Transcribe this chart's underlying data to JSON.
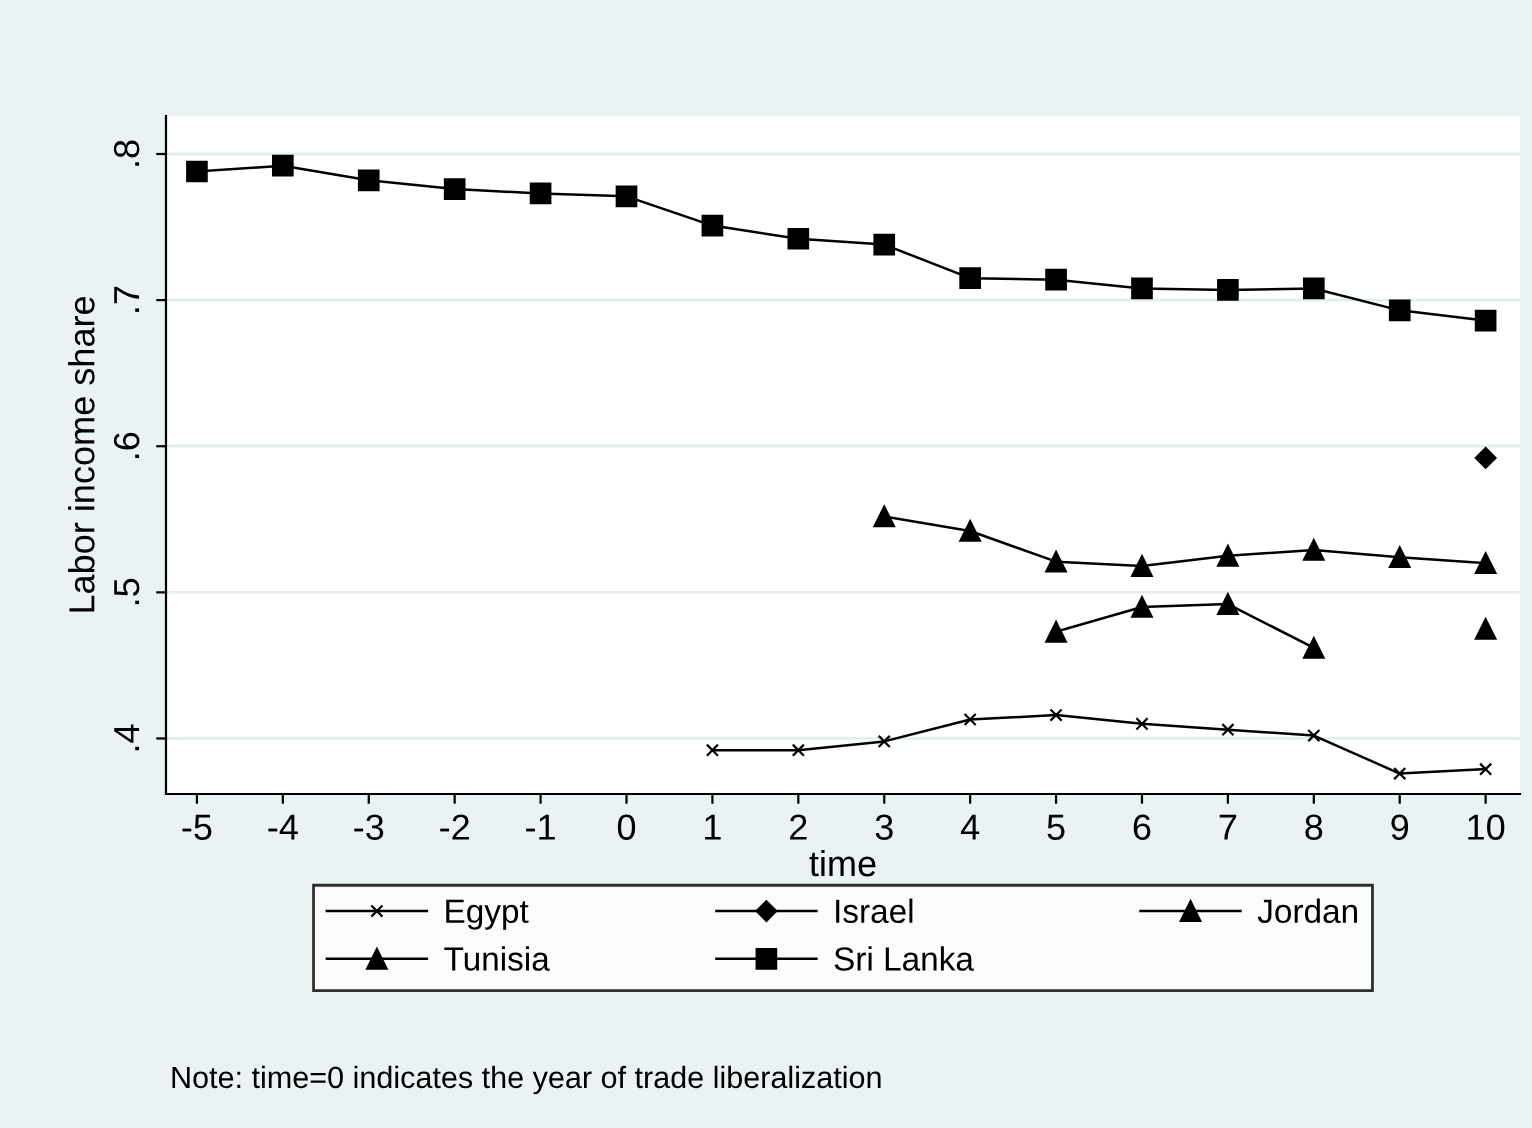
{
  "chart_data": {
    "type": "line",
    "xlabel": "time",
    "ylabel": "Labor income share",
    "xlim": [
      -5.36,
      10.4
    ],
    "ylim": [
      0.362,
      0.826
    ],
    "xticks": [
      -5,
      -4,
      -3,
      -2,
      -1,
      0,
      1,
      2,
      3,
      4,
      5,
      6,
      7,
      8,
      9,
      10
    ],
    "yticks": [
      {
        "value": 0.4,
        "label": ".4"
      },
      {
        "value": 0.5,
        "label": ".5"
      },
      {
        "value": 0.6,
        "label": ".6"
      },
      {
        "value": 0.7,
        "label": ".7"
      },
      {
        "value": 0.8,
        "label": ".8"
      }
    ],
    "grid": "y",
    "legend": "bottom",
    "series": [
      {
        "name": "Egypt",
        "color": "#000000",
        "marker": "cross",
        "x": [
          1,
          2,
          3,
          4,
          5,
          6,
          7,
          8,
          9,
          10
        ],
        "values": [
          0.392,
          0.392,
          0.398,
          0.413,
          0.416,
          0.41,
          0.406,
          0.402,
          0.376,
          0.379
        ]
      },
      {
        "name": "Israel",
        "color": "#000000",
        "marker": "diamond",
        "x": [
          10
        ],
        "values": [
          0.592
        ]
      },
      {
        "name": "Jordan",
        "color": "#000000",
        "marker": "triangle",
        "x": [
          5,
          6,
          7,
          8,
          9,
          10
        ],
        "values": [
          0.473,
          0.49,
          0.492,
          0.462,
          null,
          0.475
        ]
      },
      {
        "name": "Tunisia",
        "color": "#000000",
        "marker": "triangle",
        "x": [
          3,
          4,
          5,
          6,
          7,
          8,
          9,
          10
        ],
        "values": [
          0.552,
          0.542,
          0.521,
          0.518,
          0.525,
          0.529,
          0.524,
          0.52
        ]
      },
      {
        "name": "Sri Lanka",
        "color": "#000000",
        "marker": "square",
        "x": [
          -5,
          -4,
          -3,
          -2,
          -1,
          0,
          1,
          2,
          3,
          4,
          5,
          6,
          7,
          8,
          9,
          10
        ],
        "values": [
          0.788,
          0.792,
          0.782,
          0.776,
          0.773,
          0.771,
          0.751,
          0.742,
          0.738,
          0.715,
          0.714,
          0.708,
          0.707,
          0.708,
          0.693,
          0.686
        ]
      }
    ],
    "annotations": [
      "Note: time=0 indicates the year of trade liberalization"
    ]
  }
}
